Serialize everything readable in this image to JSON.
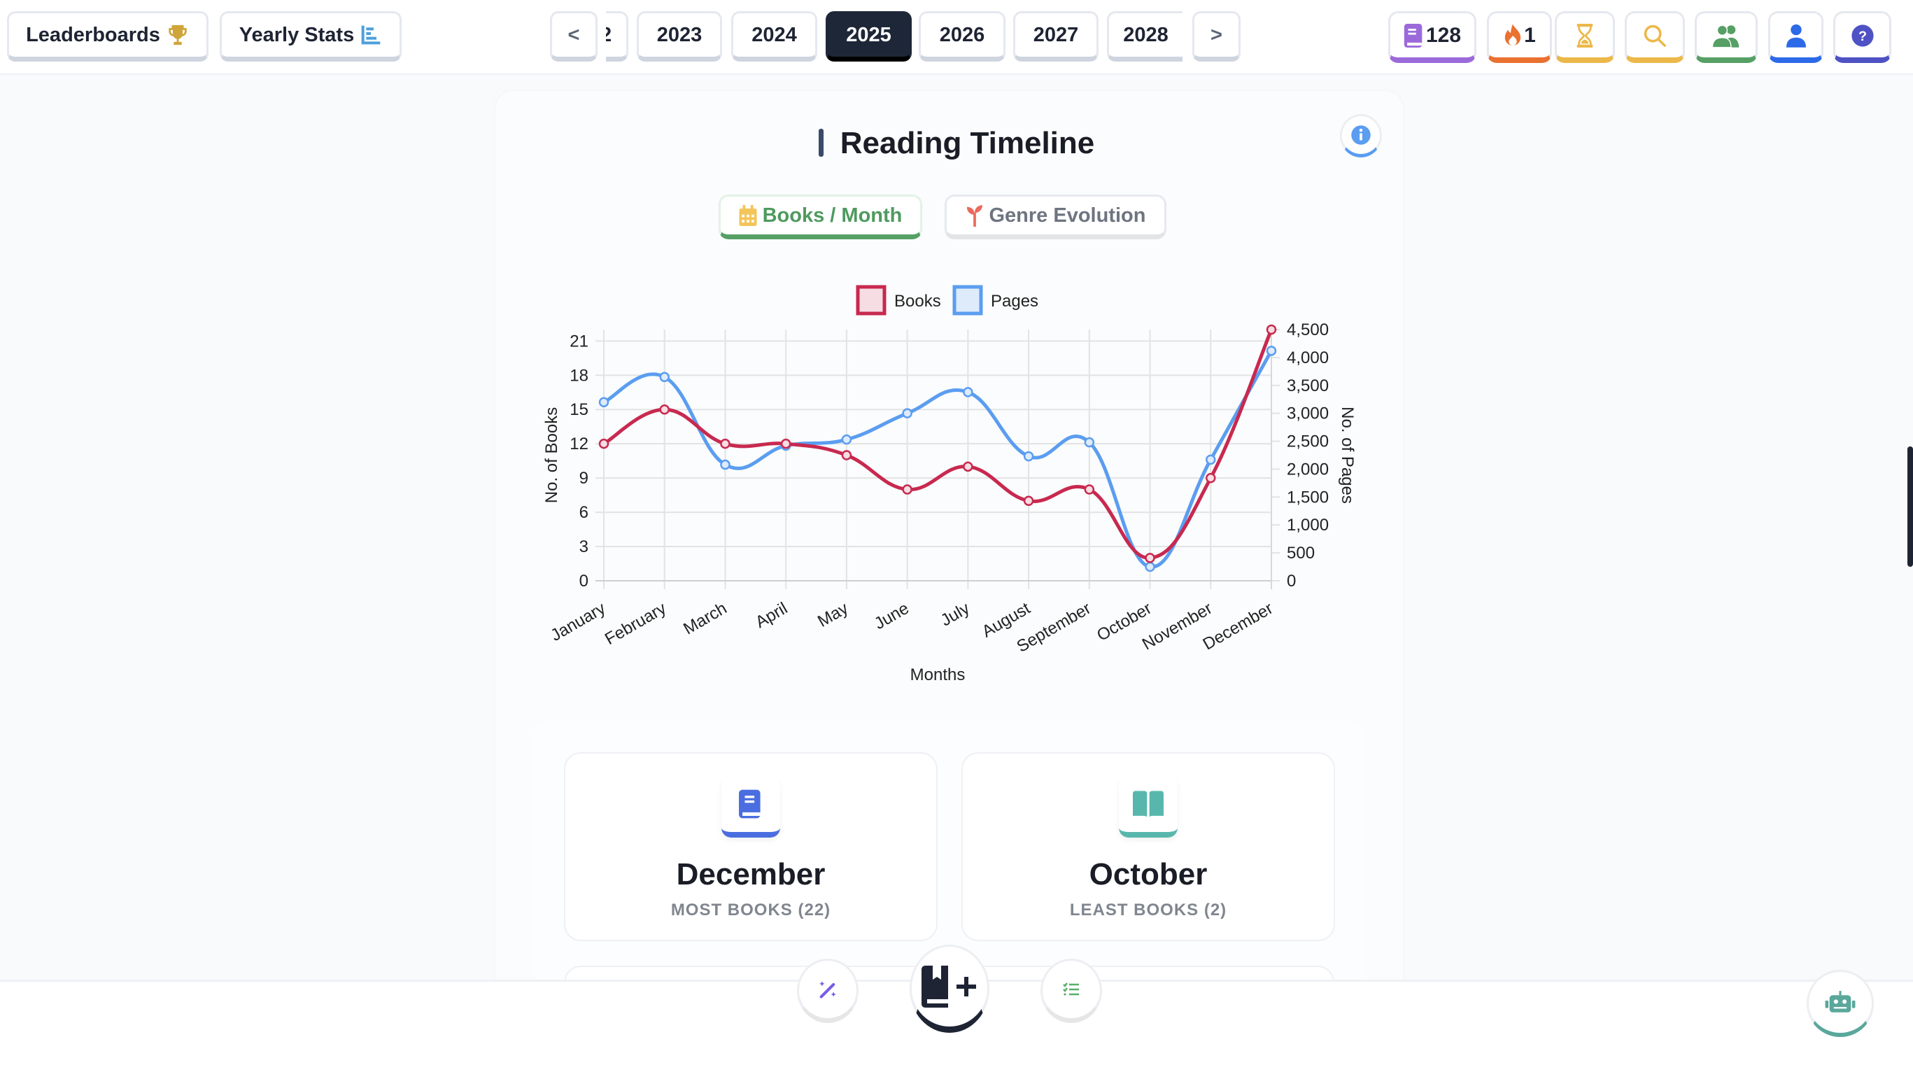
{
  "topbar": {
    "leaderboards_label": "Leaderboards",
    "yearly_stats_label": "Yearly Stats",
    "prev_label": "<",
    "next_label": ">",
    "partial_year": "2",
    "years": [
      "2023",
      "2024",
      "2025",
      "2026",
      "2027",
      "2028"
    ],
    "selected_year": "2025",
    "books_count": "128",
    "streak_count": "1",
    "colors": {
      "books": "#9b6ada",
      "streak": "#ea7130",
      "timer": "#ecb84a",
      "search": "#ecb84a",
      "friends": "#56a065",
      "profile": "#2d6ae8",
      "help": "#4e52c4"
    }
  },
  "card": {
    "title": "Reading Timeline",
    "tabs": [
      {
        "label": "Books / Month",
        "active": true,
        "icon": "calendar-icon"
      },
      {
        "label": "Genre Evolution",
        "active": false,
        "icon": "sprout-icon"
      }
    ]
  },
  "chart_data": {
    "type": "line",
    "categories": [
      "January",
      "February",
      "March",
      "April",
      "May",
      "June",
      "July",
      "August",
      "September",
      "October",
      "November",
      "December"
    ],
    "series": [
      {
        "name": "Books",
        "axis": "left",
        "color": "#c8294f",
        "values": [
          12,
          15,
          12,
          12,
          11,
          8,
          10,
          7,
          8,
          2,
          9,
          22
        ]
      },
      {
        "name": "Pages",
        "axis": "right",
        "color": "#5b9df0",
        "values": [
          3200,
          3650,
          2080,
          2420,
          2530,
          3000,
          3380,
          2230,
          2480,
          250,
          2170,
          4120
        ]
      }
    ],
    "xlabel": "Months",
    "ylabel": "No. of Books",
    "y2label": "No. of Pages",
    "ylim": [
      0,
      22
    ],
    "y2lim": [
      0,
      4500
    ],
    "yticks": [
      "0",
      "3",
      "6",
      "9",
      "12",
      "15",
      "18",
      "21"
    ],
    "y2ticks": [
      "0",
      "500",
      "1,000",
      "1,500",
      "2,000",
      "2,500",
      "3,000",
      "3,500",
      "4,000",
      "4,500"
    ],
    "grid": true,
    "legend": "top"
  },
  "stats": {
    "most": {
      "month": "December",
      "label": "MOST BOOKS (22)"
    },
    "least": {
      "month": "October",
      "label": "LEAST BOOKS (2)"
    }
  }
}
